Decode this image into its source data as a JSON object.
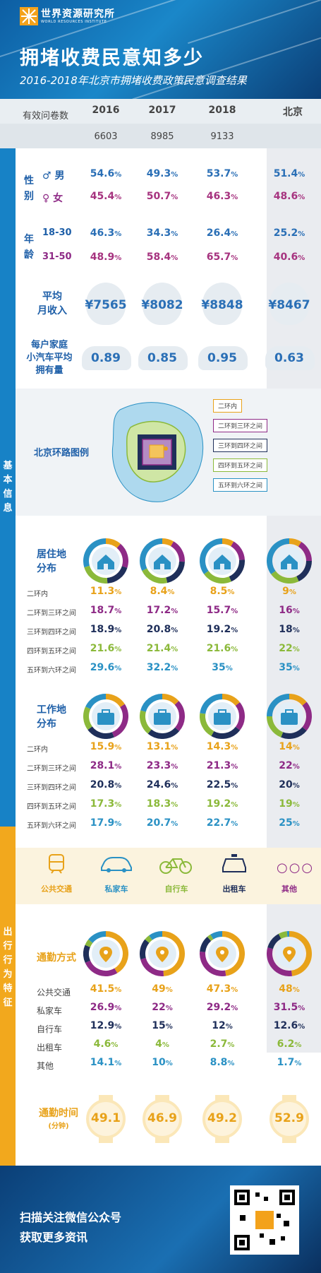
{
  "header": {
    "org_name": "世界资源研究所",
    "org_sub": "WORLD RESOURCES INSTITUTE",
    "title": "拥堵收费民意知多少",
    "subtitle": "2016-2018年北京市拥堵收费政策民意调查结果"
  },
  "columns": [
    "2016",
    "2017",
    "2018",
    "北京"
  ],
  "questionnaire": {
    "label": "有效问卷数",
    "values": [
      "6603",
      "8985",
      "9133"
    ]
  },
  "sections": {
    "basic": "基本信息",
    "travel": "出行行为特征"
  },
  "gender": {
    "label": "性别",
    "male_label": "男",
    "female_label": "女",
    "male": [
      "54.6",
      "49.3",
      "53.7",
      "51.4"
    ],
    "female": [
      "45.4",
      "50.7",
      "46.3",
      "48.6"
    ]
  },
  "age": {
    "label": "年龄",
    "group1": "18-30",
    "group2": "31-50",
    "g1": [
      "46.3",
      "34.3",
      "26.4",
      "25.2"
    ],
    "g2": [
      "48.9",
      "58.4",
      "65.7",
      "40.6"
    ]
  },
  "income": {
    "label_1": "平均",
    "label_2": "月收入",
    "values": [
      "¥7565",
      "¥8082",
      "¥8848",
      "¥8467"
    ]
  },
  "cars": {
    "label_1": "每户家庭",
    "label_2": "小汽车平均",
    "label_3": "拥有量",
    "values": [
      "0.89",
      "0.85",
      "0.95",
      "0.63"
    ]
  },
  "ring_map": {
    "label": "北京环路图例",
    "legend": [
      "二环内",
      "二环到三环之间",
      "三环到四环之间",
      "四环到五环之间",
      "五环到六环之间"
    ]
  },
  "residence": {
    "label_1": "居住地",
    "label_2": "分布",
    "rows": [
      "二环内",
      "二环到三环之间",
      "三环到四环之间",
      "四环到五环之间",
      "五环到六环之间"
    ],
    "values": [
      [
        "11.3",
        "8.4",
        "8.5",
        "9"
      ],
      [
        "18.7",
        "17.2",
        "15.7",
        "16"
      ],
      [
        "18.9",
        "20.8",
        "19.2",
        "18"
      ],
      [
        "21.6",
        "21.4",
        "21.6",
        "22"
      ],
      [
        "29.6",
        "32.2",
        "35",
        "35"
      ]
    ]
  },
  "work": {
    "label_1": "工作地",
    "label_2": "分布",
    "rows": [
      "二环内",
      "二环到三环之间",
      "三环到四环之间",
      "四环到五环之间",
      "五环到六环之间"
    ],
    "values": [
      [
        "15.9",
        "13.1",
        "14.3",
        "14"
      ],
      [
        "28.1",
        "23.3",
        "21.3",
        "22"
      ],
      [
        "20.8",
        "24.6",
        "22.5",
        "20"
      ],
      [
        "17.3",
        "18.3",
        "19.2",
        "19"
      ],
      [
        "17.9",
        "20.7",
        "22.7",
        "25"
      ]
    ]
  },
  "modes": [
    "公共交通",
    "私家车",
    "自行车",
    "出租车",
    "其他"
  ],
  "commute": {
    "label": "通勤方式",
    "rows": [
      "公共交通",
      "私家车",
      "自行车",
      "出租车",
      "其他"
    ],
    "values": [
      [
        "41.5",
        "49",
        "47.3",
        "48"
      ],
      [
        "26.9",
        "22",
        "29.2",
        "31.5"
      ],
      [
        "12.9",
        "15",
        "12",
        "12.6"
      ],
      [
        "4.6",
        "4",
        "2.7",
        "6.2"
      ],
      [
        "14.1",
        "10",
        "8.8",
        "1.7"
      ]
    ]
  },
  "commute_time": {
    "label": "通勤时间",
    "unit": "(分钟)",
    "values": [
      "49.1",
      "46.9",
      "49.2",
      "52.9"
    ]
  },
  "footer": {
    "line1": "扫描关注微信公众号",
    "line2": "获取更多资讯"
  },
  "colors": {
    "ring1": "#e8a21a",
    "ring2": "#8e2a86",
    "ring3": "#1f2f5a",
    "ring4": "#8bb93a",
    "ring5": "#2a91c4"
  }
}
